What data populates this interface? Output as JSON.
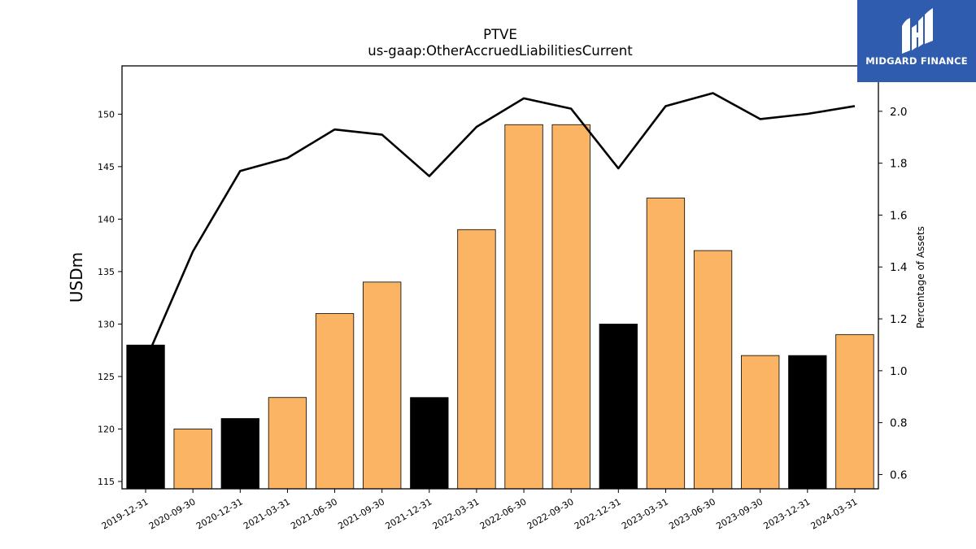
{
  "chart_data": {
    "type": "bar",
    "title": "PTVE",
    "subtitle": "us-gaap:OtherAccruedLiabilitiesCurrent",
    "ylabel": "USDm",
    "y2label": "Percentage of Assets",
    "categories": [
      "2019-12-31",
      "2020-09-30",
      "2020-12-31",
      "2021-03-31",
      "2021-06-30",
      "2021-09-30",
      "2021-12-31",
      "2022-03-31",
      "2022-06-30",
      "2022-09-30",
      "2022-12-31",
      "2023-03-31",
      "2023-06-30",
      "2023-09-30",
      "2023-12-31",
      "2024-03-31"
    ],
    "series": [
      {
        "type": "bar",
        "axis": "left",
        "values": [
          128,
          120,
          121,
          123,
          131,
          134,
          123,
          139,
          149,
          149,
          130,
          142,
          137,
          127,
          127,
          129
        ],
        "colors": [
          "#000000",
          "#fbb464",
          "#000000",
          "#fbb464",
          "#fbb464",
          "#fbb464",
          "#000000",
          "#fbb464",
          "#fbb464",
          "#fbb464",
          "#000000",
          "#fbb464",
          "#fbb464",
          "#fbb464",
          "#000000",
          "#fbb464"
        ]
      },
      {
        "type": "line",
        "axis": "right",
        "color": "#000000",
        "values": [
          1.04,
          1.46,
          1.77,
          1.82,
          1.93,
          1.91,
          1.75,
          1.94,
          2.05,
          2.01,
          1.78,
          2.02,
          2.07,
          1.97,
          1.99,
          2.02
        ]
      }
    ],
    "ylim": [
      114.3,
      154.6
    ],
    "yticks": [
      115,
      120,
      125,
      130,
      135,
      140,
      145,
      150
    ],
    "y2lim": [
      0.545,
      2.175
    ],
    "y2ticks": [
      "0.6",
      "0.8",
      "1.0",
      "1.2",
      "1.4",
      "1.6",
      "1.8",
      "2.0"
    ],
    "grid": false
  },
  "logo": {
    "text": "MIDGARD FINANCE",
    "color": "#2f5caf"
  }
}
